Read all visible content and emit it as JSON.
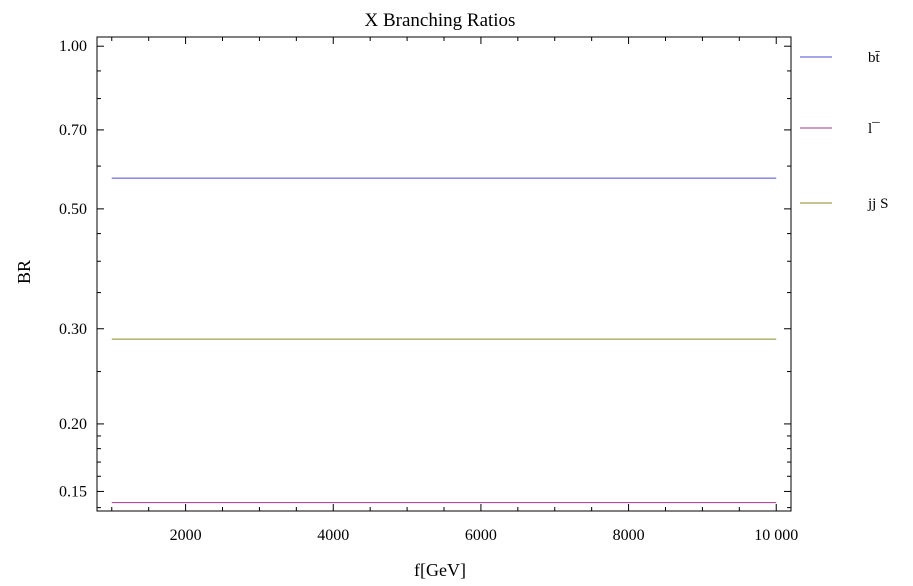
{
  "chart_data": {
    "type": "line",
    "title": "X Branching Ratios",
    "xlabel": "f[GeV]",
    "ylabel": "BR",
    "yscale": "log",
    "xlim": [
      800,
      10200
    ],
    "ylim": [
      0.138,
      1.04
    ],
    "x_ticks": [
      2000,
      4000,
      6000,
      8000,
      10000
    ],
    "x_tick_labels": [
      "2000",
      "4000",
      "6000",
      "8000",
      "10 000"
    ],
    "y_ticks": [
      0.15,
      0.2,
      0.3,
      0.5,
      0.7,
      1.0
    ],
    "y_tick_labels": [
      "0.15",
      "0.20",
      "0.30",
      "0.50",
      "0.70",
      "1.00"
    ],
    "legend_position": "right",
    "grid": false,
    "series": [
      {
        "name": "bt̄",
        "color": "#4b4bd1",
        "x": [
          1000,
          10000
        ],
        "y": [
          0.57,
          0.57
        ]
      },
      {
        "name": "l¯",
        "color": "#a03a8c",
        "x": [
          1000,
          10000
        ],
        "y": [
          0.143,
          0.143
        ]
      },
      {
        "name": "jj S",
        "color": "#8a8a2a",
        "x": [
          1000,
          10000
        ],
        "y": [
          0.287,
          0.287
        ]
      }
    ]
  }
}
